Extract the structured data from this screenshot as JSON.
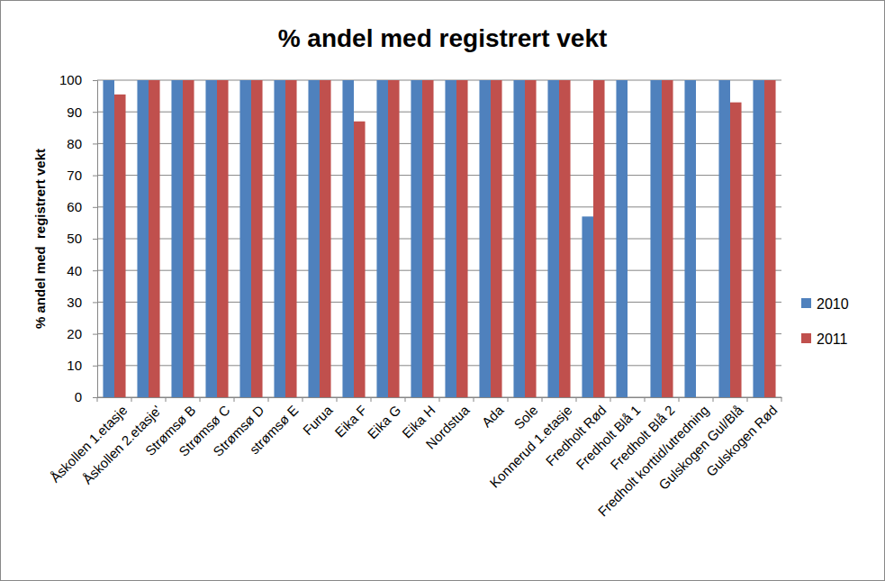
{
  "chart_data": {
    "type": "bar",
    "title": "% andel med registrert vekt",
    "y_label": "% andel med  registrert vekt",
    "categories": [
      "Åskollen 1.etasje",
      "Åskollen 2.etasje'",
      "Strømsø B",
      "Strømsø C",
      "Strømsø D",
      "strømsø E",
      "Furua",
      "Eika F",
      "Eika G",
      "Eika H",
      "Nordstua",
      "Ada",
      "Sole",
      "Konnerud 1.etasje",
      "Fredholt Rød",
      "Fredholt Blå 1",
      "Fredholt Blå 2",
      "Fredholt korttid/utredning",
      "Gulskogen Gul/Blå",
      "Gulskogen Rød"
    ],
    "series": [
      {
        "name": "2010",
        "color": "#4f81bd",
        "values": [
          100,
          100,
          100,
          100,
          100,
          100,
          100,
          100,
          100,
          100,
          100,
          100,
          100,
          100,
          57,
          100,
          100,
          100,
          100,
          100
        ]
      },
      {
        "name": "2011",
        "color": "#c0504d",
        "values": [
          95.5,
          100,
          100,
          100,
          100,
          100,
          100,
          87,
          100,
          100,
          100,
          100,
          100,
          100,
          100,
          null,
          100,
          null,
          93,
          100
        ]
      }
    ],
    "ylim": [
      0,
      100
    ],
    "yticks": [
      0,
      10,
      20,
      30,
      40,
      50,
      60,
      70,
      80,
      90,
      100
    ],
    "grid": true,
    "legend": "right"
  }
}
